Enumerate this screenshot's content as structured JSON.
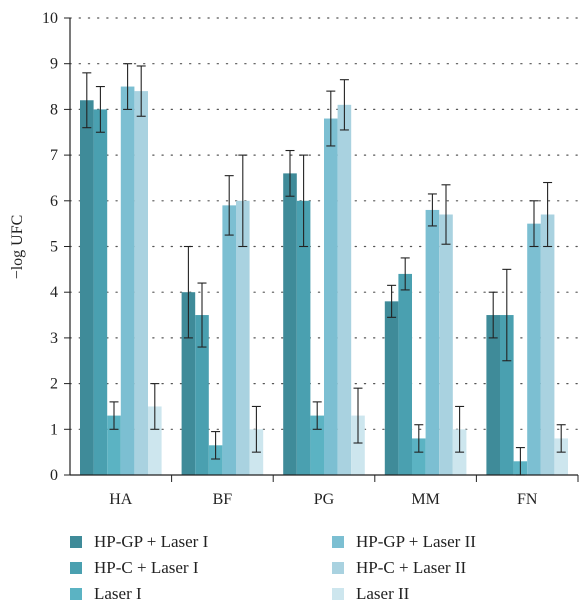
{
  "chart_data": {
    "type": "bar",
    "ylabel": "−log UFC",
    "ylim": [
      0,
      10
    ],
    "yticks": [
      0,
      1,
      2,
      3,
      4,
      5,
      6,
      7,
      8,
      9,
      10
    ],
    "grid": "horizontal dotted",
    "legend_position": "bottom",
    "categories": [
      "HA",
      "BF",
      "PG",
      "MM",
      "FN"
    ],
    "series": [
      {
        "name": "HP-GP + Laser I",
        "color": "#3f8b99",
        "values": [
          8.2,
          4.0,
          6.6,
          3.8,
          3.5
        ],
        "errors": [
          0.6,
          1.0,
          0.5,
          0.35,
          0.5
        ]
      },
      {
        "name": "HP-C + Laser I",
        "color": "#4aa0b0",
        "values": [
          8.0,
          3.5,
          6.0,
          4.4,
          3.5
        ],
        "errors": [
          0.5,
          0.7,
          1.0,
          0.35,
          1.0
        ]
      },
      {
        "name": "Laser I",
        "color": "#5bb3c3",
        "values": [
          1.3,
          0.65,
          1.3,
          0.8,
          0.3
        ],
        "errors": [
          0.3,
          0.3,
          0.3,
          0.3,
          0.3
        ]
      },
      {
        "name": "HP-GP + Laser II",
        "color": "#7cbfd2",
        "values": [
          8.5,
          5.9,
          7.8,
          5.8,
          5.5
        ],
        "errors": [
          0.5,
          0.65,
          0.6,
          0.35,
          0.5
        ]
      },
      {
        "name": "HP-C + Laser II",
        "color": "#a9d2e0",
        "values": [
          8.4,
          6.0,
          8.1,
          5.7,
          5.7
        ],
        "errors": [
          0.55,
          1.0,
          0.55,
          0.65,
          0.7
        ]
      },
      {
        "name": "Laser II",
        "color": "#cde6ee",
        "values": [
          1.5,
          1.0,
          1.3,
          1.0,
          0.8
        ],
        "errors": [
          0.5,
          0.5,
          0.6,
          0.5,
          0.3
        ]
      }
    ]
  }
}
